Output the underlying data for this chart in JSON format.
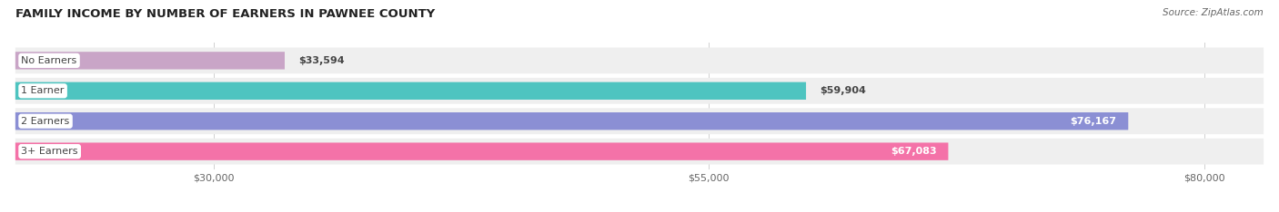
{
  "title": "FAMILY INCOME BY NUMBER OF EARNERS IN PAWNEE COUNTY",
  "source": "Source: ZipAtlas.com",
  "categories": [
    "No Earners",
    "1 Earner",
    "2 Earners",
    "3+ Earners"
  ],
  "values": [
    33594,
    59904,
    76167,
    67083
  ],
  "bar_colors": [
    "#c9a5c7",
    "#4ec4c0",
    "#8b8fd4",
    "#f472a8"
  ],
  "value_labels": [
    "$33,594",
    "$59,904",
    "$76,167",
    "$67,083"
  ],
  "value_inside": [
    false,
    false,
    true,
    true
  ],
  "xmin": 20000,
  "xmax": 83000,
  "xticks": [
    30000,
    55000,
    80000
  ],
  "xtick_labels": [
    "$30,000",
    "$55,000",
    "$80,000"
  ],
  "bar_row_bg": "#efefef",
  "background_color": "#ffffff",
  "title_fontsize": 9.5,
  "source_fontsize": 7.5,
  "label_fontsize": 8,
  "value_fontsize": 8,
  "tick_fontsize": 8
}
